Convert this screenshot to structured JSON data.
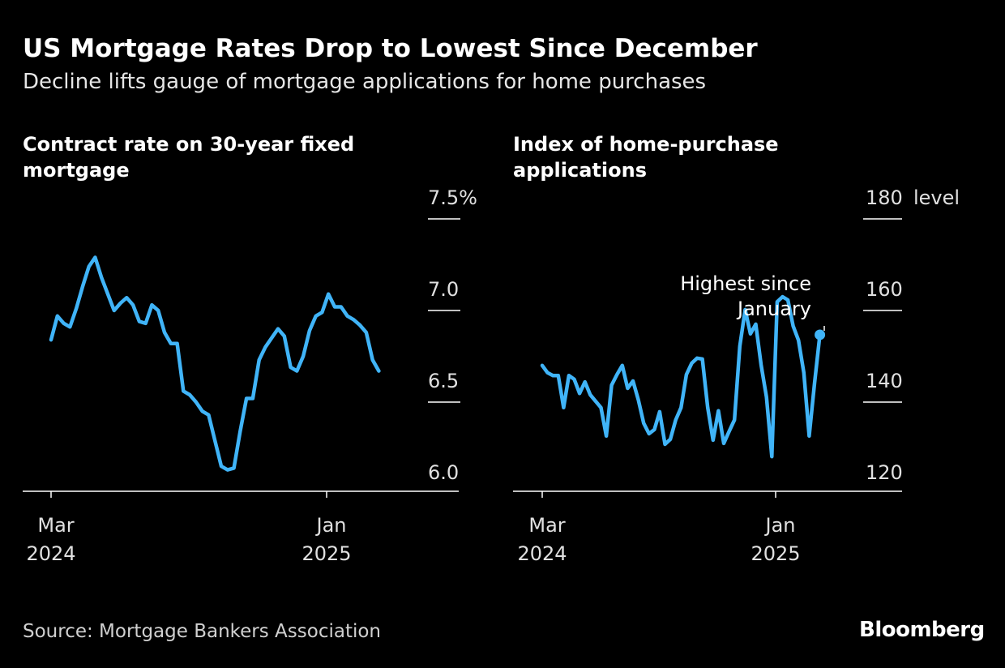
{
  "title": "US Mortgage Rates Drop to Lowest Since December",
  "subtitle": "Decline lifts gauge of mortgage applications for home purchases",
  "source": "Source: Mortgage Bankers Association",
  "logo": "Bloomberg",
  "colors": {
    "line": "#40b4f8",
    "background": "#000000",
    "grid": "#ffffff"
  },
  "chart_data": [
    {
      "type": "line",
      "title": "Contract rate on 30-year fixed mortgage",
      "unit": "%",
      "ylim": [
        6.0,
        7.5
      ],
      "yticks": [
        {
          "value": 7.5,
          "label": "7.5%"
        },
        {
          "value": 7.0,
          "label": "7.0"
        },
        {
          "value": 6.5,
          "label": "6.5"
        },
        {
          "value": 6.0,
          "label": "6.0"
        }
      ],
      "xticks": [
        {
          "date": "2024-03-01",
          "label1": "Mar",
          "label2": "2024"
        },
        {
          "date": "2025-01-01",
          "label1": "Jan",
          "label2": "2025"
        }
      ],
      "series": [
        {
          "dates": [
            "2024-03-01",
            "2024-03-08",
            "2024-03-15",
            "2024-03-22",
            "2024-03-29",
            "2024-04-05",
            "2024-04-12",
            "2024-04-19",
            "2024-04-26",
            "2024-05-03",
            "2024-05-10",
            "2024-05-17",
            "2024-05-24",
            "2024-05-31",
            "2024-06-07",
            "2024-06-14",
            "2024-06-21",
            "2024-06-28",
            "2024-07-05",
            "2024-07-12",
            "2024-07-19",
            "2024-07-26",
            "2024-08-02",
            "2024-08-09",
            "2024-08-16",
            "2024-08-23",
            "2024-08-30",
            "2024-09-06",
            "2024-09-13",
            "2024-09-20",
            "2024-09-27",
            "2024-10-04",
            "2024-10-11",
            "2024-10-18",
            "2024-10-25",
            "2024-11-01",
            "2024-11-08",
            "2024-11-15",
            "2024-11-22",
            "2024-11-29",
            "2024-12-06",
            "2024-12-13",
            "2024-12-20",
            "2024-12-27",
            "2025-01-03",
            "2025-01-10",
            "2025-01-17",
            "2025-01-24",
            "2025-01-31",
            "2025-02-07",
            "2025-02-14",
            "2025-02-21",
            "2025-02-28"
          ],
          "values": [
            6.84,
            6.97,
            6.93,
            6.91,
            7.01,
            7.13,
            7.24,
            7.29,
            7.18,
            7.09,
            7.0,
            7.04,
            7.07,
            7.03,
            6.94,
            6.93,
            7.03,
            7.0,
            6.88,
            6.82,
            6.82,
            6.56,
            6.54,
            6.5,
            6.45,
            6.43,
            6.29,
            6.15,
            6.13,
            6.14,
            6.34,
            6.52,
            6.52,
            6.73,
            6.8,
            6.85,
            6.9,
            6.86,
            6.69,
            6.67,
            6.75,
            6.89,
            6.97,
            6.99,
            7.09,
            7.02,
            7.02,
            6.97,
            6.95,
            6.92,
            6.88,
            6.73,
            6.67
          ]
        }
      ]
    },
    {
      "type": "line",
      "title": "Index of home-purchase applications",
      "unit": "level",
      "ylim": [
        120,
        180
      ],
      "yticks": [
        {
          "value": 180,
          "label": "180"
        },
        {
          "value": 160,
          "label": "160"
        },
        {
          "value": 140,
          "label": "140"
        },
        {
          "value": 120,
          "label": "120"
        }
      ],
      "xticks": [
        {
          "date": "2024-03-01",
          "label1": "Mar",
          "label2": "2024"
        },
        {
          "date": "2025-01-01",
          "label1": "Jan",
          "label2": "2025"
        }
      ],
      "annotation": {
        "line1": "Highest since",
        "line2": "January"
      },
      "series": [
        {
          "dates": [
            "2024-03-01",
            "2024-03-08",
            "2024-03-15",
            "2024-03-22",
            "2024-03-29",
            "2024-04-05",
            "2024-04-12",
            "2024-04-19",
            "2024-04-26",
            "2024-05-03",
            "2024-05-10",
            "2024-05-17",
            "2024-05-24",
            "2024-05-31",
            "2024-06-07",
            "2024-06-14",
            "2024-06-21",
            "2024-06-28",
            "2024-07-05",
            "2024-07-12",
            "2024-07-19",
            "2024-07-26",
            "2024-08-02",
            "2024-08-09",
            "2024-08-16",
            "2024-08-23",
            "2024-08-30",
            "2024-09-06",
            "2024-09-13",
            "2024-09-20",
            "2024-09-27",
            "2024-10-04",
            "2024-10-11",
            "2024-10-18",
            "2024-10-25",
            "2024-11-01",
            "2024-11-08",
            "2024-11-15",
            "2024-11-22",
            "2024-11-29",
            "2024-12-06",
            "2024-12-13",
            "2024-12-20",
            "2024-12-27",
            "2025-01-03",
            "2025-01-10",
            "2025-01-17",
            "2025-01-24",
            "2025-01-31",
            "2025-02-07",
            "2025-02-14",
            "2025-02-21",
            "2025-02-28"
          ],
          "values": [
            148.0,
            146.4,
            145.8,
            145.8,
            138.8,
            145.8,
            145.0,
            141.9,
            144.4,
            141.6,
            140.2,
            138.8,
            132.6,
            143.7,
            146.0,
            148.0,
            143.0,
            144.6,
            140.5,
            135.4,
            133.1,
            134.0,
            137.9,
            130.8,
            131.9,
            136.1,
            138.8,
            146.0,
            148.5,
            149.6,
            149.4,
            138.8,
            131.7,
            138.1,
            131.0,
            133.6,
            136.1,
            152.2,
            160.2,
            154.9,
            157.0,
            148.1,
            141.1,
            128.1,
            161.9,
            163.0,
            162.3,
            156.6,
            153.5,
            146.4,
            132.6,
            144.1,
            154.7
          ]
        }
      ]
    }
  ]
}
